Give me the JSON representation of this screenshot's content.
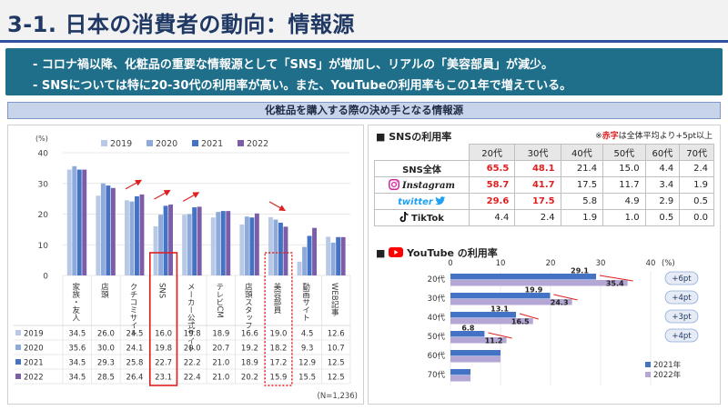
{
  "page": {
    "title": "3-1. 日本の消費者の動向：情報源",
    "summary": [
      "- コロナ禍以降、化粧品の重要な情報源として「SNS」が増加し、リアルの「美容部員」が減少。",
      "- SNSについては特に20-30代の利用率が高い。また、YouTubeの利用率もこの1年で増えている。"
    ],
    "banner": "化粧品を購入する際の決め手となる情報源"
  },
  "colors": {
    "y2019": "#b7c9e6",
    "y2020": "#8eaadb",
    "y2021": "#4472c4",
    "y2022": "#7b5ea7",
    "highlight": "#e02020",
    "header": "#1f3864",
    "summary_bg": "#1f6f8b"
  },
  "left_chart": {
    "unit": "(%)",
    "sample_note": "(N=1,236)",
    "chart_data": {
      "type": "bar",
      "categories": [
        "家族・友人",
        "店頭",
        "クチコミサイト",
        "SNS",
        "メーカー公式サイト",
        "テレビCM",
        "店頭スタッフ",
        "美容部員",
        "動画サイト",
        "WEB記事"
      ],
      "series": [
        {
          "name": "2019",
          "values": [
            34.5,
            26.0,
            24.5,
            16.0,
            19.8,
            18.9,
            16.6,
            19.0,
            4.5,
            12.6
          ]
        },
        {
          "name": "2020",
          "values": [
            35.6,
            30.0,
            24.1,
            19.8,
            20.0,
            20.7,
            19.2,
            18.2,
            9.3,
            10.7
          ]
        },
        {
          "name": "2021",
          "values": [
            34.5,
            29.3,
            25.8,
            22.7,
            22.2,
            21.0,
            18.9,
            17.2,
            12.9,
            12.5
          ]
        },
        {
          "name": "2022",
          "values": [
            34.5,
            28.5,
            26.4,
            23.1,
            22.4,
            21.0,
            20.2,
            15.9,
            15.5,
            12.5
          ]
        }
      ],
      "yticks": [
        "0",
        "10",
        "20",
        "30",
        "40"
      ],
      "ylim": [
        0,
        40
      ],
      "legend_position": "top",
      "highlight_solid": "SNS",
      "highlight_dotted": "美容部員"
    }
  },
  "sns_table": {
    "title": "SNSの利用率",
    "note_prefix": "※",
    "note_red": "赤字",
    "note_suffix": "は全体平均より+5pt以上",
    "columns": [
      "20代",
      "30代",
      "40代",
      "50代",
      "60代",
      "70代"
    ],
    "rows": [
      {
        "label": "SNS全体",
        "icon": "none",
        "values": [
          "65.5",
          "48.1",
          "21.4",
          "15.0",
          "4.4",
          "2.4"
        ],
        "red": [
          true,
          true,
          false,
          false,
          false,
          false
        ]
      },
      {
        "label": "Instagram",
        "icon": "instagram-icon",
        "values": [
          "58.7",
          "41.7",
          "17.5",
          "11.7",
          "3.4",
          "1.9"
        ],
        "red": [
          true,
          true,
          false,
          false,
          false,
          false
        ]
      },
      {
        "label": "twitter",
        "icon": "twitter-icon",
        "values": [
          "29.6",
          "17.5",
          "5.8",
          "4.9",
          "2.9",
          "0.5"
        ],
        "red": [
          true,
          true,
          false,
          false,
          false,
          false
        ]
      },
      {
        "label": "TikTok",
        "icon": "tiktok-icon",
        "values": [
          "4.4",
          "2.4",
          "1.9",
          "1.0",
          "0.5",
          "0.0"
        ],
        "red": [
          false,
          false,
          false,
          false,
          false,
          false
        ]
      }
    ]
  },
  "youtube_chart": {
    "title_brand": "YouTube",
    "title_suffix": "の利用率",
    "unit": "(%)",
    "chart_data": {
      "type": "bar",
      "orientation": "horizontal",
      "categories": [
        "20代",
        "30代",
        "40代",
        "50代",
        "60代",
        "70代"
      ],
      "xticks": [
        "0",
        "10",
        "20",
        "30",
        "40"
      ],
      "xlim": [
        0,
        40
      ],
      "series": [
        {
          "name": "2021年",
          "values": [
            29.1,
            19.9,
            13.1,
            6.8,
            10.0,
            4.0
          ]
        },
        {
          "name": "2022年",
          "values": [
            35.4,
            24.3,
            16.5,
            11.2,
            10.0,
            4.0
          ]
        }
      ],
      "labels_2021": [
        "29.1",
        "19.9",
        "13.1",
        "6.8",
        "",
        ""
      ],
      "labels_2022": [
        "35.4",
        "24.3",
        "16.5",
        "11.2",
        "",
        ""
      ],
      "deltas": [
        "+6pt",
        "+4pt",
        "+3pt",
        "+4pt"
      ],
      "legend_position": "bottom-right"
    }
  }
}
